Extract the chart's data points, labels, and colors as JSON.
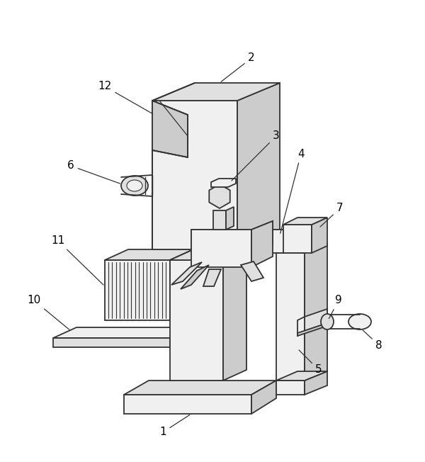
{
  "bg": "#ffffff",
  "lc": "#333333",
  "lw": 1.3,
  "fill_light": "#f0f0f0",
  "fill_mid": "#e0e0e0",
  "fill_dark": "#cccccc",
  "label_fs": 11,
  "label_color": "#000000"
}
